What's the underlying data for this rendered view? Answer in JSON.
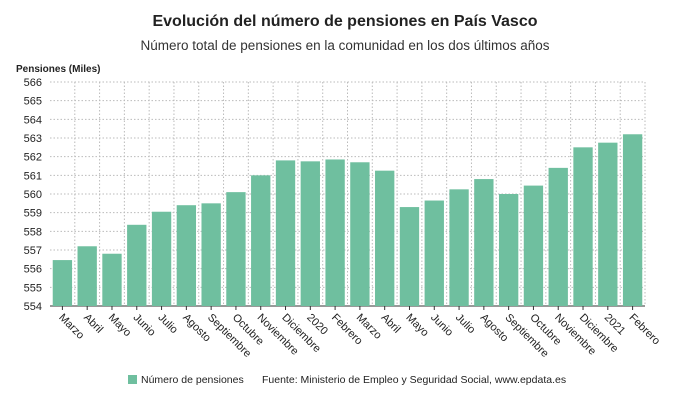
{
  "chart_data": {
    "type": "bar",
    "title": "Evolución del número de pensiones en País Vasco",
    "subtitle": "Número total de pensiones en la comunidad en los dos últimos años",
    "y_label": "Pensiones (Miles)",
    "source": "Fuente: Ministerio de Empleo y Seguridad Social, www.epdata.es",
    "categories": [
      "Marzo",
      "Abril",
      "Mayo",
      "Junio",
      "Julio",
      "Agosto",
      "Septiembre",
      "Octubre",
      "Noviembre",
      "Diciembre",
      "2020",
      "Febrero",
      "Marzo",
      "Abril",
      "Mayo",
      "Junio",
      "Julio",
      "Agosto",
      "Septiembre",
      "Octubre",
      "Noviembre",
      "Diciembre",
      "2021",
      "Febrero"
    ],
    "series": [
      {
        "name": "Número de pensiones",
        "color": "#6fbf9f",
        "values": [
          556.46,
          557.2,
          556.8,
          558.35,
          559.05,
          559.4,
          559.5,
          560.1,
          561.0,
          561.8,
          561.75,
          561.85,
          561.7,
          561.25,
          559.3,
          559.65,
          560.25,
          560.8,
          560.0,
          560.45,
          561.4,
          562.5,
          562.75,
          563.2
        ]
      }
    ],
    "ylim": [
      554,
      566
    ],
    "yticks": [
      554,
      555,
      556,
      557,
      558,
      559,
      560,
      561,
      562,
      563,
      564,
      565,
      566
    ],
    "grid": true
  }
}
